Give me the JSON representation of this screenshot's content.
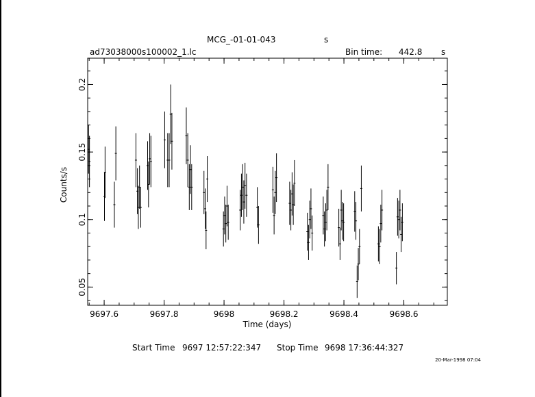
{
  "header": {
    "object_name": "MCG_-01-01-043",
    "object_suffix": "s",
    "file_name": "ad73038000s100002_1.lc",
    "bin_label": "Bin time:",
    "bin_value": "442.8",
    "bin_unit": "s"
  },
  "footer": {
    "start_label": "Start Time",
    "start_value": "9697 12:57:22:347",
    "stop_label": "Stop Time",
    "stop_value": "9698 17:36:44:327",
    "timestamp": "20-Mar-1998 07:04"
  },
  "chart_data": {
    "type": "scatter",
    "xlabel": "Time (days)",
    "ylabel": "Counts/s",
    "xlim": [
      9697.545,
      9698.745
    ],
    "ylim": [
      0.0365,
      0.2195
    ],
    "xticks": [
      9697.6,
      9697.8,
      9698,
      9698.2,
      9698.4,
      9698.6
    ],
    "xtick_labels": [
      "9697.6",
      "9697.8",
      "9698",
      "9698.2",
      "9698.4",
      "9698.6"
    ],
    "yticks": [
      0.05,
      0.1,
      0.15,
      0.2
    ],
    "ytick_labels": [
      "0.05",
      "0.1",
      "0.15",
      "0.2"
    ],
    "x_minor_step": 0.05,
    "y_minor_step": 0.01,
    "error_bars": true,
    "points": [
      [
        9697.548,
        0.152,
        0.018
      ],
      [
        9697.551,
        0.143,
        0.019
      ],
      [
        9697.601,
        0.117,
        0.018
      ],
      [
        9697.603,
        0.135,
        0.019
      ],
      [
        9697.634,
        0.111,
        0.017
      ],
      [
        9697.639,
        0.149,
        0.02
      ],
      [
        9697.706,
        0.144,
        0.02
      ],
      [
        9697.711,
        0.121,
        0.017
      ],
      [
        9697.714,
        0.109,
        0.016
      ],
      [
        9697.718,
        0.124,
        0.016
      ],
      [
        9697.722,
        0.109,
        0.015
      ],
      [
        9697.745,
        0.14,
        0.018
      ],
      [
        9697.748,
        0.126,
        0.017
      ],
      [
        9697.752,
        0.145,
        0.019
      ],
      [
        9697.756,
        0.143,
        0.019
      ],
      [
        9697.802,
        0.159,
        0.021
      ],
      [
        9697.812,
        0.144,
        0.02
      ],
      [
        9697.817,
        0.144,
        0.02
      ],
      [
        9697.822,
        0.178,
        0.022
      ],
      [
        9697.826,
        0.158,
        0.021
      ],
      [
        9697.874,
        0.162,
        0.021
      ],
      [
        9697.879,
        0.144,
        0.02
      ],
      [
        9697.884,
        0.124,
        0.017
      ],
      [
        9697.888,
        0.137,
        0.018
      ],
      [
        9697.892,
        0.124,
        0.017
      ],
      [
        9697.933,
        0.12,
        0.016
      ],
      [
        9697.937,
        0.108,
        0.015
      ],
      [
        9697.94,
        0.092,
        0.014
      ],
      [
        9697.944,
        0.13,
        0.017
      ],
      [
        9697.998,
        0.093,
        0.013
      ],
      [
        9698.002,
        0.103,
        0.014
      ],
      [
        9698.006,
        0.097,
        0.014
      ],
      [
        9698.01,
        0.11,
        0.015
      ],
      [
        9698.014,
        0.098,
        0.013
      ],
      [
        9698.054,
        0.107,
        0.015
      ],
      [
        9698.058,
        0.118,
        0.016
      ],
      [
        9698.062,
        0.124,
        0.017
      ],
      [
        9698.066,
        0.113,
        0.016
      ],
      [
        9698.07,
        0.125,
        0.017
      ],
      [
        9698.075,
        0.118,
        0.016
      ],
      [
        9698.111,
        0.109,
        0.015
      ],
      [
        9698.115,
        0.096,
        0.014
      ],
      [
        9698.163,
        0.122,
        0.017
      ],
      [
        9698.167,
        0.103,
        0.014
      ],
      [
        9698.171,
        0.12,
        0.016
      ],
      [
        9698.175,
        0.131,
        0.018
      ],
      [
        9698.219,
        0.112,
        0.016
      ],
      [
        9698.223,
        0.107,
        0.015
      ],
      [
        9698.227,
        0.119,
        0.016
      ],
      [
        9698.231,
        0.111,
        0.015
      ],
      [
        9698.235,
        0.127,
        0.017
      ],
      [
        9698.278,
        0.091,
        0.014
      ],
      [
        9698.282,
        0.083,
        0.013
      ],
      [
        9698.286,
        0.1,
        0.014
      ],
      [
        9698.29,
        0.108,
        0.015
      ],
      [
        9698.294,
        0.09,
        0.013
      ],
      [
        9698.331,
        0.103,
        0.014
      ],
      [
        9698.335,
        0.093,
        0.013
      ],
      [
        9698.339,
        0.098,
        0.014
      ],
      [
        9698.343,
        0.107,
        0.015
      ],
      [
        9698.347,
        0.124,
        0.017
      ],
      [
        9698.383,
        0.094,
        0.014
      ],
      [
        9698.387,
        0.082,
        0.012
      ],
      [
        9698.391,
        0.107,
        0.015
      ],
      [
        9698.395,
        0.099,
        0.014
      ],
      [
        9698.399,
        0.098,
        0.014
      ],
      [
        9698.436,
        0.106,
        0.015
      ],
      [
        9698.44,
        0.099,
        0.014
      ],
      [
        9698.444,
        0.054,
        0.012
      ],
      [
        9698.448,
        0.067,
        0.012
      ],
      [
        9698.452,
        0.08,
        0.013
      ],
      [
        9698.458,
        0.123,
        0.017
      ],
      [
        9698.515,
        0.082,
        0.013
      ],
      [
        9698.519,
        0.08,
        0.013
      ],
      [
        9698.523,
        0.097,
        0.014
      ],
      [
        9698.527,
        0.107,
        0.015
      ],
      [
        9698.575,
        0.064,
        0.012
      ],
      [
        9698.579,
        0.102,
        0.014
      ],
      [
        9698.583,
        0.1,
        0.014
      ],
      [
        9698.587,
        0.107,
        0.015
      ],
      [
        9698.591,
        0.089,
        0.013
      ],
      [
        9698.595,
        0.098,
        0.014
      ]
    ]
  }
}
